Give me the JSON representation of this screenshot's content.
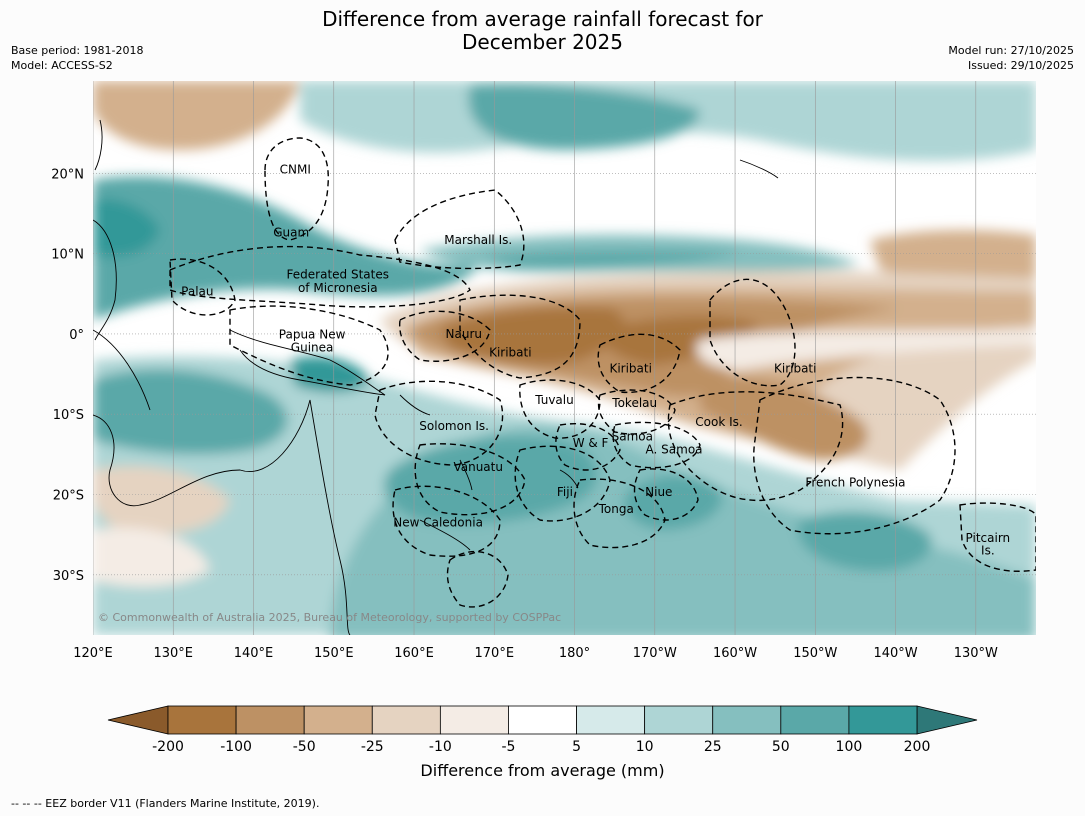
{
  "title": "Difference from average rainfall forecast for\nDecember 2025",
  "meta_left": [
    "Base period: 1981-2018",
    "Model: ACCESS-S2"
  ],
  "meta_right": [
    "Model run: 27/10/2025",
    "Issued: 29/10/2025"
  ],
  "copyright": "© Commonwealth of Australia 2025, Bureau of Meteorology, supported by COSPPac",
  "axes": {
    "x_ticks": [
      {
        "lon": 120,
        "label": "120°E"
      },
      {
        "lon": 130,
        "label": "130°E"
      },
      {
        "lon": 140,
        "label": "140°E"
      },
      {
        "lon": 150,
        "label": "150°E"
      },
      {
        "lon": 160,
        "label": "160°E"
      },
      {
        "lon": 170,
        "label": "170°E"
      },
      {
        "lon": 180,
        "label": "180°"
      },
      {
        "lon": 190,
        "label": "170°W"
      },
      {
        "lon": 200,
        "label": "160°W"
      },
      {
        "lon": 210,
        "label": "150°W"
      },
      {
        "lon": 220,
        "label": "140°W"
      },
      {
        "lon": 230,
        "label": "130°W"
      }
    ],
    "y_ticks": [
      {
        "lat": 20,
        "label": "20°N"
      },
      {
        "lat": 10,
        "label": "10°N"
      },
      {
        "lat": 0,
        "label": "0°"
      },
      {
        "lat": -10,
        "label": "10°S"
      },
      {
        "lat": -20,
        "label": "20°S"
      },
      {
        "lat": -30,
        "label": "30°S"
      }
    ],
    "lon_range": [
      120,
      237.5
    ],
    "lat_range": [
      -37.5,
      31.5
    ]
  },
  "places": [
    {
      "name": "CNMI",
      "lon": 145.2,
      "lat": 20.5
    },
    {
      "name": "Guam",
      "lon": 144.7,
      "lat": 12.6
    },
    {
      "name": "Marshall Is.",
      "lon": 168.0,
      "lat": 11.7
    },
    {
      "name": "Federated States",
      "lon": 150.5,
      "lat": 7.4
    },
    {
      "name": "of Micronesia",
      "lon": 150.5,
      "lat": 5.7
    },
    {
      "name": "Palau",
      "lon": 133.0,
      "lat": 5.3
    },
    {
      "name": "Papua New",
      "lon": 147.3,
      "lat": -0.1
    },
    {
      "name": "Guinea",
      "lon": 147.3,
      "lat": -1.7
    },
    {
      "name": "Nauru",
      "lon": 166.2,
      "lat": 0.0
    },
    {
      "name": "Kiribati",
      "lon": 172.0,
      "lat": -2.3
    },
    {
      "name": "Kiribati",
      "lon": 187.0,
      "lat": -4.3
    },
    {
      "name": "Kiribati",
      "lon": 207.5,
      "lat": -4.3
    },
    {
      "name": "Tuvalu",
      "lon": 177.5,
      "lat": -8.2
    },
    {
      "name": "Tokelau",
      "lon": 187.5,
      "lat": -8.6
    },
    {
      "name": "Cook Is.",
      "lon": 198.0,
      "lat": -11.0
    },
    {
      "name": "Solomon Is.",
      "lon": 165.0,
      "lat": -11.5
    },
    {
      "name": "Samoa",
      "lon": 187.2,
      "lat": -12.8
    },
    {
      "name": "W & F",
      "lon": 182.0,
      "lat": -13.6
    },
    {
      "name": "A. Samoa",
      "lon": 192.4,
      "lat": -14.4
    },
    {
      "name": "Vanuatu",
      "lon": 168.0,
      "lat": -16.6
    },
    {
      "name": "Fiji",
      "lon": 178.8,
      "lat": -19.7
    },
    {
      "name": "Niue",
      "lon": 190.5,
      "lat": -19.7
    },
    {
      "name": "French Polynesia",
      "lon": 215.0,
      "lat": -18.5
    },
    {
      "name": "Tonga",
      "lon": 185.2,
      "lat": -21.8
    },
    {
      "name": "New Caledonia",
      "lon": 163.0,
      "lat": -23.5
    },
    {
      "name": "Pitcairn",
      "lon": 231.5,
      "lat": -25.4
    },
    {
      "name": "Is.",
      "lon": 231.5,
      "lat": -27.0
    }
  ],
  "colorbar": {
    "label": "Difference from average (mm)",
    "ticks": [
      "-200",
      "-100",
      "-50",
      "-25",
      "-10",
      "-5",
      "5",
      "10",
      "25",
      "50",
      "100",
      "200"
    ],
    "colors": [
      "#a8743c",
      "#bd9164",
      "#d3b08d",
      "#e5d3c1",
      "#f4ece5",
      "#ffffff",
      "#d6eaea",
      "#aed5d5",
      "#85bfbf",
      "#5aa8a8",
      "#339898"
    ],
    "under_color": "#8a5a2b",
    "over_color": "#2e7878"
  },
  "footnote": "--  --  -- EEZ border V11 (Flanders Marine Institute, 2019)."
}
